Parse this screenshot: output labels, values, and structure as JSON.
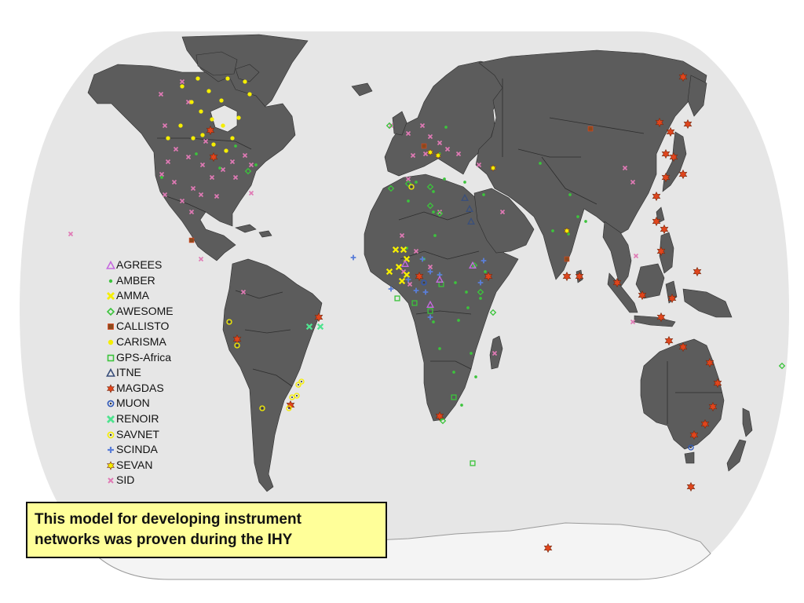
{
  "legend": {
    "items": [
      {
        "label": "AGREES",
        "marker": "triangle-open",
        "color": "#c66adf"
      },
      {
        "label": "AMBER",
        "marker": "dot",
        "color": "#3cc43c"
      },
      {
        "label": "AMMA",
        "marker": "x-thick",
        "color": "#f5ee00"
      },
      {
        "label": "AWESOME",
        "marker": "diamond-open",
        "color": "#3cc43c"
      },
      {
        "label": "CALLISTO",
        "marker": "square-filled",
        "color": "#8a4a1e"
      },
      {
        "label": "CARISMA",
        "marker": "dot-large",
        "color": "#f5ee00"
      },
      {
        "label": "GPS-Africa",
        "marker": "square-open",
        "color": "#3cc43c"
      },
      {
        "label": "ITNE",
        "marker": "triangle-open",
        "color": "#3a4f7a"
      },
      {
        "label": "MAGDAS",
        "marker": "star-6",
        "color": "#e0451c"
      },
      {
        "label": "MUON",
        "marker": "circle-dot",
        "color": "#2e57b8"
      },
      {
        "label": "RENOIR",
        "marker": "x-thick",
        "color": "#4fe38f"
      },
      {
        "label": "SAVNET",
        "marker": "circle-dot",
        "color": "#f5ee00"
      },
      {
        "label": "SCINDA",
        "marker": "plus",
        "color": "#5a7ed8"
      },
      {
        "label": "SEVAN",
        "marker": "star-6",
        "color": "#f5ee00"
      },
      {
        "label": "SID",
        "marker": "x-small",
        "color": "#e07ab5"
      }
    ]
  },
  "caption": {
    "line1": "This model for developing instrument",
    "line2": "networks was proven during the IHY"
  },
  "map": {
    "ocean_color": "#e6e6e6",
    "land_color": "#5c5c5c",
    "border_color": "#2d2d2d",
    "antarctica_color": "#f4f4f4"
  }
}
